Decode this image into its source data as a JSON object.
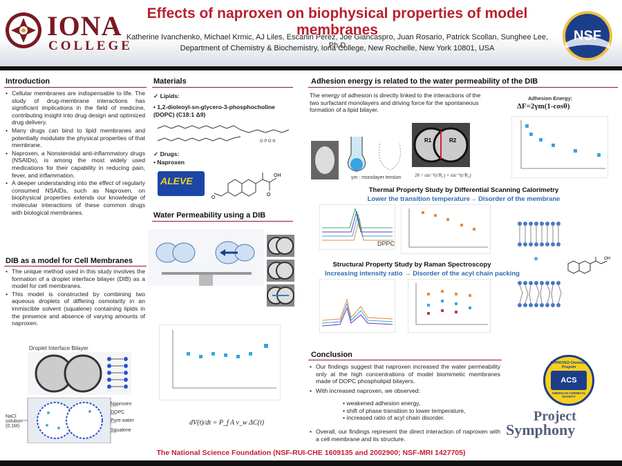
{
  "header": {
    "logo_word": "IONA",
    "logo_sub": "COLLEGE",
    "title": "Effects of naproxen on biophysical properties of model membranes",
    "authors": "Katherine Ivanchenko, Michael Krmic, AJ Liles, Escarlin Perez, Joe Giancaspro, Juan Rosario, Patrick Scollan, Sunghee Lee, Ph.D",
    "affiliation": "Department of Chemistry & Biochemistry, Iona College, New Rochelle, New York 10801, USA",
    "nsf_logo_text": "NSF"
  },
  "introduction": {
    "title": "Introduction",
    "bullets": [
      "Cellular membranes are indispensable to life. The study of drug-membrane interactions has significant implications in the field of medicine, contributing insight into drug design and optimized drug delivery.",
      "Many drugs can bind to lipid membranes and potentially modulate the physical properties of that membrane.",
      "Naproxen, a Nonsteroidal anti-inflammatory drugs (NSAIDs), is among the most widely used medications for their capability in reducing pain, fever, and inflammation.",
      "A deeper understanding into the effect of regularly consumed NSAIDs, such as Naproxen, on biophysical properties extends our knowledge of molecular interactions of these common drugs with biological membranes."
    ]
  },
  "dib_model": {
    "title": "DIB as a model for Cell Membranes",
    "bullets": [
      "The unique method used in this study involves the formation of a droplet interface bilayer (DIB) as a model for cell membranes.",
      "This model is constructed by combining two aqueous droplets of differing osmolarity in an immiscible solvent (squalene) containing lipids in the presence and absence of varying amounts of naproxen."
    ],
    "figure_title": "Droplet Interface Bilayer",
    "labels": [
      "Naproxen",
      "DOPC",
      "Pure water",
      "Squalene",
      "NaCl solution (0.1M)"
    ]
  },
  "materials": {
    "title": "Materials",
    "lipids_heading": "Lipids:",
    "lipid_name": "1,2-dioleoyl-sn-glycero-3-phosphocholine (DOPC) (C18:1 Δ9)",
    "drugs_heading": "Drugs:",
    "drug_name": "Naproxen",
    "aleve_label": "ALEVE"
  },
  "water_perm": {
    "title": "Water Permeability using a DIB",
    "equation": "dV(t)/dt = P_f A v_w ΔC(t)"
  },
  "adhesion": {
    "title": "Adhesion energy is related to the water permeability of the DIB",
    "text": "The energy of adhesion is directly linked to the interactions of the two surfactant monolayers and driving force for the spontaneous formation of a lipid bilayer.",
    "energy_label": "Adhesion Energy:",
    "energy_formula": "ΔF=2γm(1-cosθ)",
    "monolayer_label": "γm : monolayer tension",
    "r1": "R1",
    "r2": "R2"
  },
  "dsc": {
    "title": "Thermal Property Study by Differential Scanning Calorimetry",
    "subtitle": "Lower the transition temperature→ Disorder of the membrane",
    "plot_label": "DPPC"
  },
  "raman": {
    "title": "Structural Property Study by Raman Spectroscopy",
    "subtitle": "Increasing intensity ratio → Disorder of the acyl chain packing"
  },
  "conclusion": {
    "title": "Conclusion",
    "bullet1": "Our findings suggest that naproxen increased the water permeability only at the high concentrations of model biomimetic membranes made of DOPC phospholipid bilayers.",
    "bullet2": "With increased naproxen, we observed:",
    "sub_bullets": [
      "weakened adhesion energy,",
      "shift of phase transition to lower temperature,",
      "increased ratio of acyl chain disorder."
    ],
    "bullet3": "Overall, our findings represent the direct interaction of naproxen with a cell membrane and its structure."
  },
  "acs": {
    "top": "APPROVED Chemistry Program",
    "mid": "ACS",
    "bottom": "AMERICAN CHEMICAL SOCIETY"
  },
  "symphony": {
    "line1": "Project",
    "line2": "Symphony"
  },
  "footer": {
    "text": "The National Science Foundation (NSF-RUI-CHE 1609135 and 2002900; NSF-MRI 1427705)"
  },
  "colors": {
    "title_red": "#b8202e",
    "rule": "#8a1c25",
    "accent_blue": "#2e6db5",
    "iona_maroon": "#7a1a22"
  }
}
